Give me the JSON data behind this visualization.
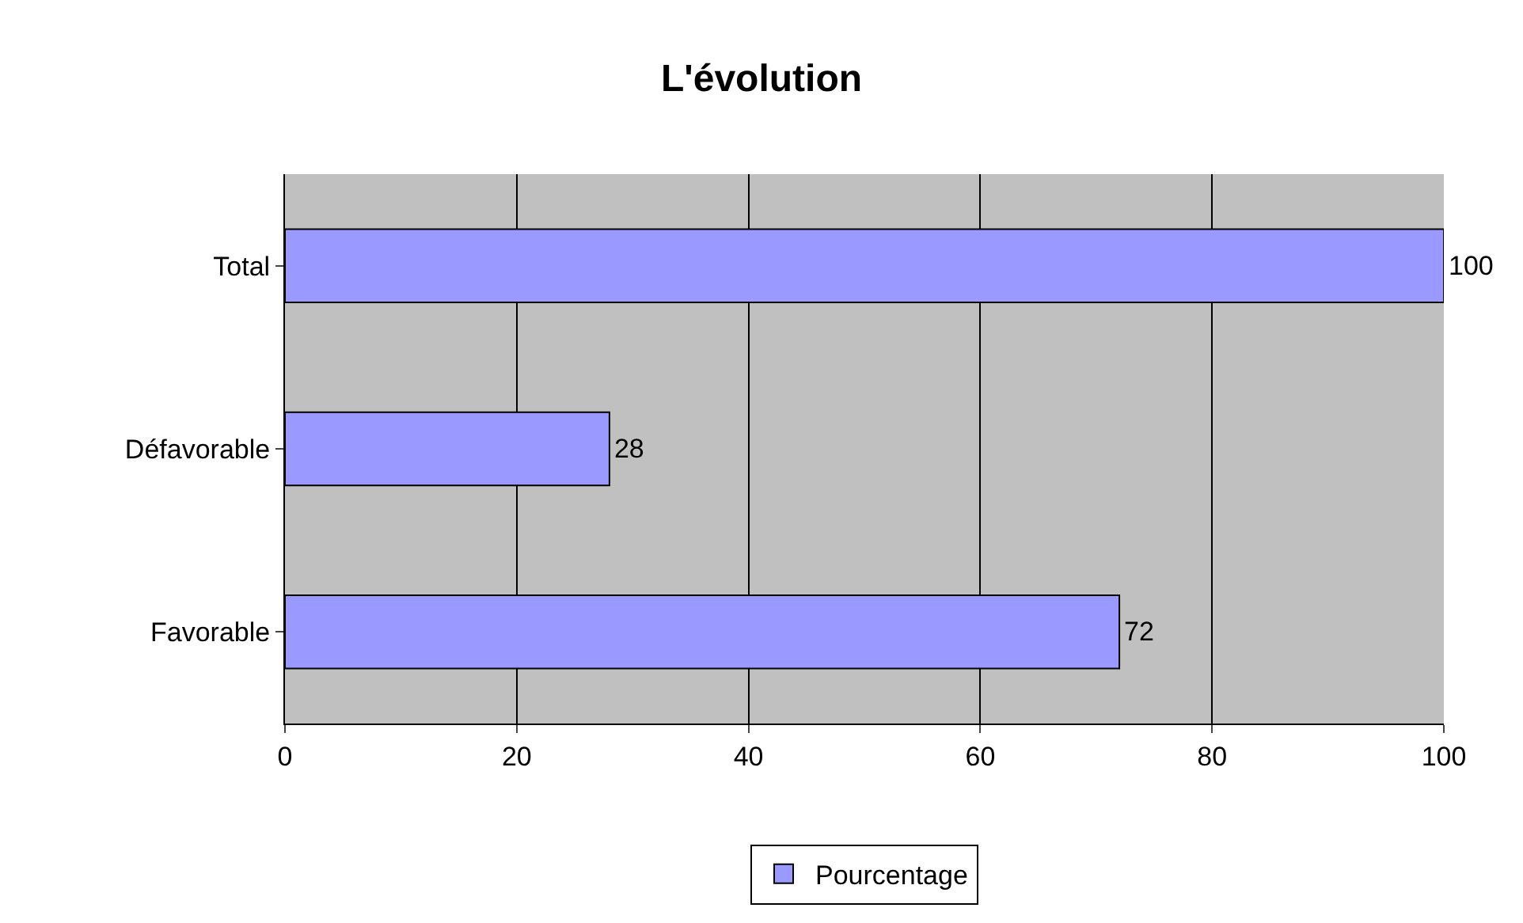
{
  "chart_data": {
    "type": "bar",
    "orientation": "horizontal",
    "title": "L'évolution",
    "categories": [
      "Total",
      "Défavorable",
      "Favorable"
    ],
    "series": [
      {
        "name": "Pourcentage",
        "color": "#9999ff",
        "values": [
          100,
          28,
          72
        ]
      }
    ],
    "xlim": [
      0,
      100
    ],
    "xticks": [
      0,
      20,
      40,
      60,
      80,
      100
    ],
    "grid": "x",
    "legend": "bottom",
    "data_labels": true
  }
}
